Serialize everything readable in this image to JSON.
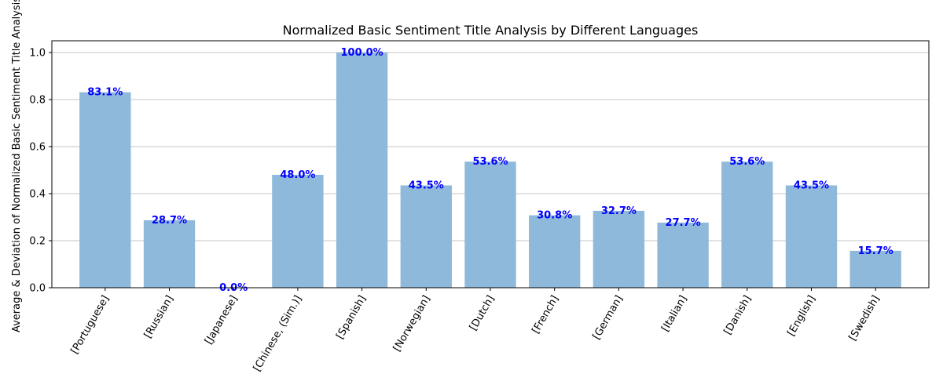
{
  "chart_data": {
    "type": "bar",
    "title": "Normalized Basic Sentiment Title Analysis by Different Languages",
    "xlabel": "",
    "ylabel": "Average & Deviation of Normalized Basic Sentiment Title Analysis",
    "categories": [
      "[Portuguese]",
      "[Russian]",
      "[Japanese]",
      "[Chinese, (Sim.)]",
      "[Spanish]",
      "[Norwegian]",
      "[Dutch]",
      "[French]",
      "[German]",
      "[Italian]",
      "[Danish]",
      "[English]",
      "[Swedish]"
    ],
    "values": [
      0.831,
      0.287,
      0.0,
      0.48,
      1.0,
      0.435,
      0.536,
      0.308,
      0.327,
      0.277,
      0.536,
      0.435,
      0.157
    ],
    "data_labels": [
      "83.1%",
      "28.7%",
      "0.0%",
      "48.0%",
      "100.0%",
      "43.5%",
      "53.6%",
      "30.8%",
      "32.7%",
      "27.7%",
      "53.6%",
      "43.5%",
      "15.7%"
    ],
    "ylim": [
      0,
      1.05
    ],
    "yticks": [
      0.0,
      0.2,
      0.4,
      0.6,
      0.8,
      1.0
    ],
    "ytick_labels": [
      "0.0",
      "0.2",
      "0.4",
      "0.6",
      "0.8",
      "1.0"
    ],
    "grid": "y",
    "bar_color": "#8fb9da",
    "label_color": "#0000ff"
  }
}
